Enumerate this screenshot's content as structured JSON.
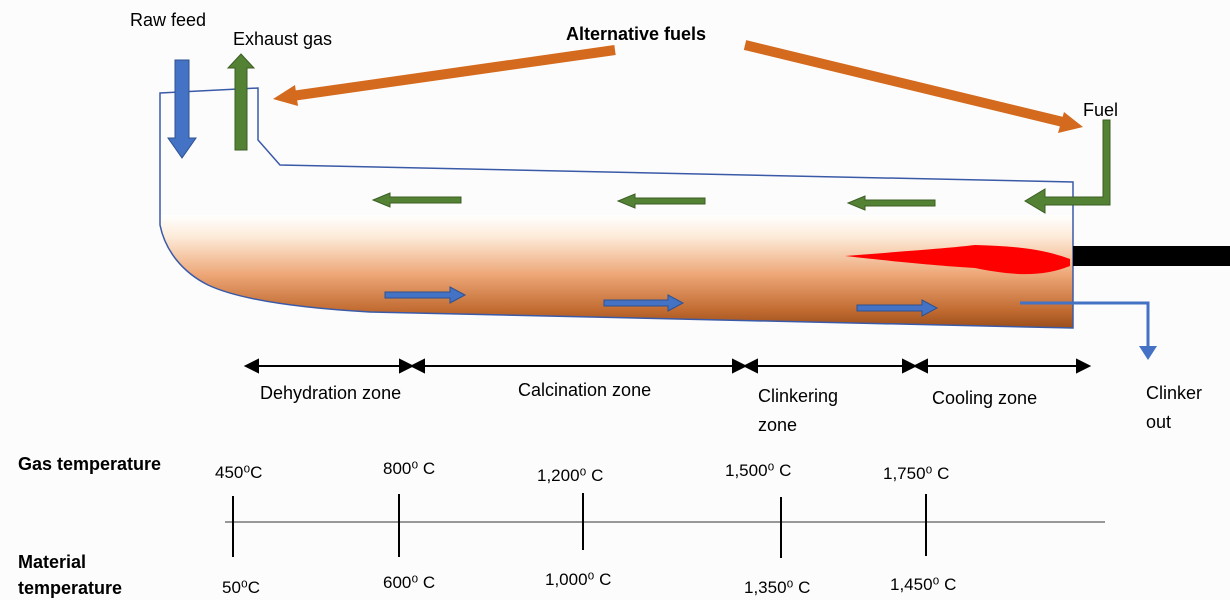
{
  "labels": {
    "raw_feed": "Raw feed",
    "exhaust_gas": "Exhaust gas",
    "alternative_fuels": "Alternative fuels",
    "fuel": "Fuel",
    "clinker_out_line1": "Clinker",
    "clinker_out_line2": "out"
  },
  "zones": [
    {
      "line1": "Dehydration zone",
      "line2": ""
    },
    {
      "line1": "Calcination zone",
      "line2": ""
    },
    {
      "line1": "Clinkering",
      "line2": "zone"
    },
    {
      "line1": "Cooling zone",
      "line2": ""
    }
  ],
  "temperature_rows": {
    "gas_label": "Gas temperature",
    "material_label_line1": "Material",
    "material_label_line2": "temperature"
  },
  "gas_temperatures": [
    "450⁰C",
    "800⁰ C",
    "1,200⁰ C",
    "1,500⁰ C",
    "1,750⁰ C"
  ],
  "material_temperatures": [
    "50⁰C",
    "600⁰ C",
    "1,000⁰ C",
    "1,350⁰ C",
    "1,450⁰ C"
  ],
  "colors": {
    "kiln_outline": "#3a5aa8",
    "gas_arrow": "#548235",
    "material_arrow": "#4472c4",
    "fuel_arrow": "#d46a1e",
    "flame": "#ff0000",
    "burner": "#000000",
    "bed_top": "#fdebd9",
    "bed_mid": "#eda676",
    "bed_bottom": "#8b4214"
  }
}
